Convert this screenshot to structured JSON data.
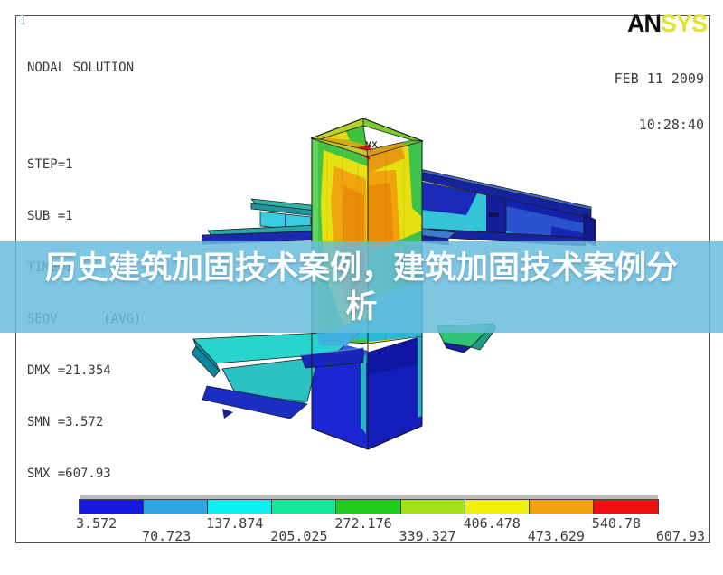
{
  "plot": {
    "corner_number": "1"
  },
  "annotation": {
    "lines": [
      "NODAL SOLUTION",
      "STEP=1",
      "SUB =1",
      "TIME=1",
      "SEQV      (AVG)",
      "DMX =21.354",
      "SMN =3.572",
      "SMX =607.93"
    ]
  },
  "logo": {
    "an": "AN",
    "sys": "SYS"
  },
  "datetime": {
    "date": "FEB 11 2009",
    "time": "10:28:40"
  },
  "banner": {
    "line1": "历史建筑加固技术案例，建筑加固技术案例分",
    "line2": "析",
    "background": "#69bcde"
  },
  "model_labels": {
    "max": "MX",
    "min": "MN"
  },
  "legend": {
    "labels": [
      "3.572",
      "70.723",
      "137.874",
      "205.025",
      "272.176",
      "339.327",
      "406.478",
      "473.629",
      "540.78",
      "607.93"
    ],
    "colors": [
      "#1717e0",
      "#2ea4e4",
      "#0ceeee",
      "#12e89a",
      "#1ecb1e",
      "#a2e217",
      "#f0f00d",
      "#f0a30d",
      "#ee1010"
    ],
    "min": "3.572",
    "max": "607.93"
  }
}
